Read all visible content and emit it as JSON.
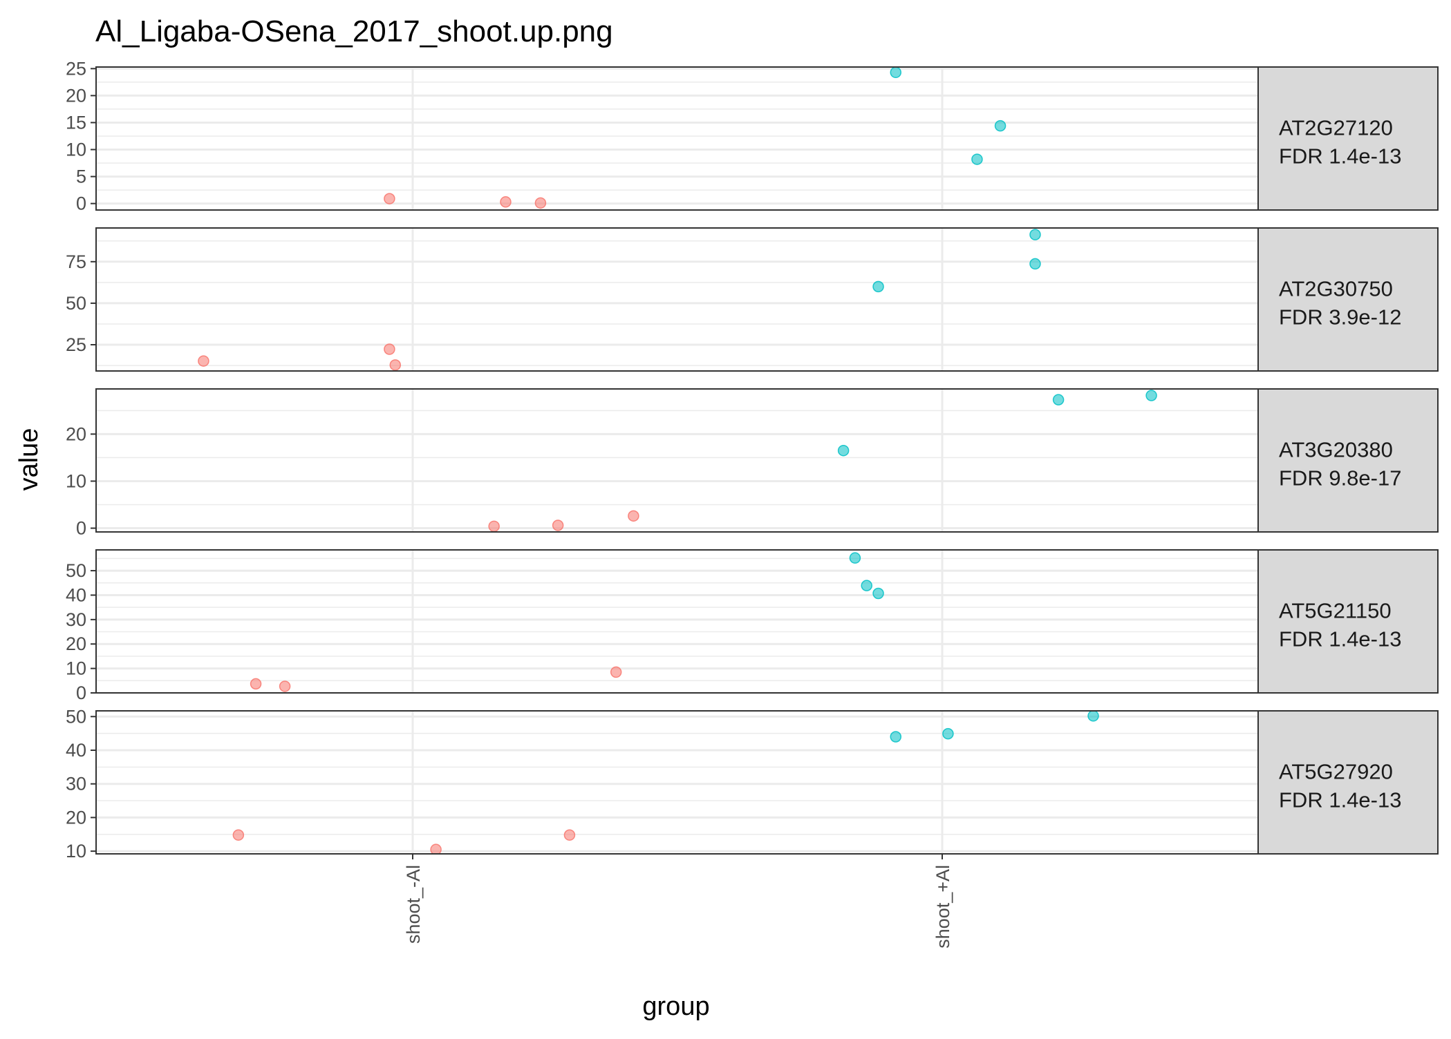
{
  "chart_data": {
    "type": "scatter",
    "title": "Al_Ligaba-OSena_2017_shoot.up.png",
    "xlabel": "group",
    "ylabel": "value",
    "categories": [
      "shoot_-Al",
      "shoot_+Al"
    ],
    "colors": {
      "shoot_-Al": "#F8766D",
      "shoot_+Al": "#00BFC4"
    },
    "grid": true,
    "panels": [
      {
        "gene": "AT2G27120",
        "fdr": "FDR 1.4e-13",
        "ylim": [
          -1.2,
          25.3
        ],
        "yticks": [
          0,
          5,
          10,
          15,
          20,
          25
        ],
        "points": [
          {
            "group": "shoot_-Al",
            "jitter": -0.04,
            "value": 0.9
          },
          {
            "group": "shoot_-Al",
            "jitter": 0.16,
            "value": 0.3
          },
          {
            "group": "shoot_-Al",
            "jitter": 0.22,
            "value": 0.1
          },
          {
            "group": "shoot_+Al",
            "jitter": -0.08,
            "value": 24.3
          },
          {
            "group": "shoot_+Al",
            "jitter": 0.1,
            "value": 14.4
          },
          {
            "group": "shoot_+Al",
            "jitter": 0.06,
            "value": 8.2
          }
        ]
      },
      {
        "gene": "AT2G30750",
        "fdr": "FDR 3.9e-12",
        "ylim": [
          9.2,
          95.3
        ],
        "yticks": [
          25,
          50,
          75
        ],
        "points": [
          {
            "group": "shoot_-Al",
            "jitter": -0.36,
            "value": 15.2
          },
          {
            "group": "shoot_-Al",
            "jitter": -0.04,
            "value": 22.3
          },
          {
            "group": "shoot_-Al",
            "jitter": -0.03,
            "value": 12.8
          },
          {
            "group": "shoot_+Al",
            "jitter": -0.11,
            "value": 60.0
          },
          {
            "group": "shoot_+Al",
            "jitter": 0.16,
            "value": 91.3
          },
          {
            "group": "shoot_+Al",
            "jitter": 0.16,
            "value": 73.7
          }
        ]
      },
      {
        "gene": "AT3G20380",
        "fdr": "FDR 9.8e-17",
        "ylim": [
          -0.8,
          29.6
        ],
        "yticks": [
          0,
          10,
          20
        ],
        "points": [
          {
            "group": "shoot_-Al",
            "jitter": 0.14,
            "value": 0.4
          },
          {
            "group": "shoot_-Al",
            "jitter": 0.25,
            "value": 0.6
          },
          {
            "group": "shoot_-Al",
            "jitter": 0.38,
            "value": 2.6
          },
          {
            "group": "shoot_+Al",
            "jitter": -0.17,
            "value": 16.5
          },
          {
            "group": "shoot_+Al",
            "jitter": 0.2,
            "value": 27.3
          },
          {
            "group": "shoot_+Al",
            "jitter": 0.36,
            "value": 28.2
          }
        ]
      },
      {
        "gene": "AT5G21150",
        "fdr": "FDR 1.4e-13",
        "ylim": [
          0.0,
          58.5
        ],
        "yticks": [
          0,
          10,
          20,
          30,
          40,
          50
        ],
        "points": [
          {
            "group": "shoot_-Al",
            "jitter": -0.27,
            "value": 3.7
          },
          {
            "group": "shoot_-Al",
            "jitter": -0.22,
            "value": 2.7
          },
          {
            "group": "shoot_-Al",
            "jitter": 0.35,
            "value": 8.5
          },
          {
            "group": "shoot_+Al",
            "jitter": -0.15,
            "value": 55.2
          },
          {
            "group": "shoot_+Al",
            "jitter": -0.13,
            "value": 43.9
          },
          {
            "group": "shoot_+Al",
            "jitter": -0.11,
            "value": 40.7
          }
        ]
      },
      {
        "gene": "AT5G27920",
        "fdr": "FDR 1.4e-13",
        "ylim": [
          9.2,
          51.7
        ],
        "yticks": [
          10,
          20,
          30,
          40,
          50
        ],
        "points": [
          {
            "group": "shoot_-Al",
            "jitter": -0.3,
            "value": 14.8
          },
          {
            "group": "shoot_-Al",
            "jitter": 0.04,
            "value": 10.5
          },
          {
            "group": "shoot_-Al",
            "jitter": 0.27,
            "value": 14.8
          },
          {
            "group": "shoot_+Al",
            "jitter": -0.08,
            "value": 44.0
          },
          {
            "group": "shoot_+Al",
            "jitter": 0.01,
            "value": 44.9
          },
          {
            "group": "shoot_+Al",
            "jitter": 0.26,
            "value": 50.2
          }
        ]
      }
    ]
  }
}
